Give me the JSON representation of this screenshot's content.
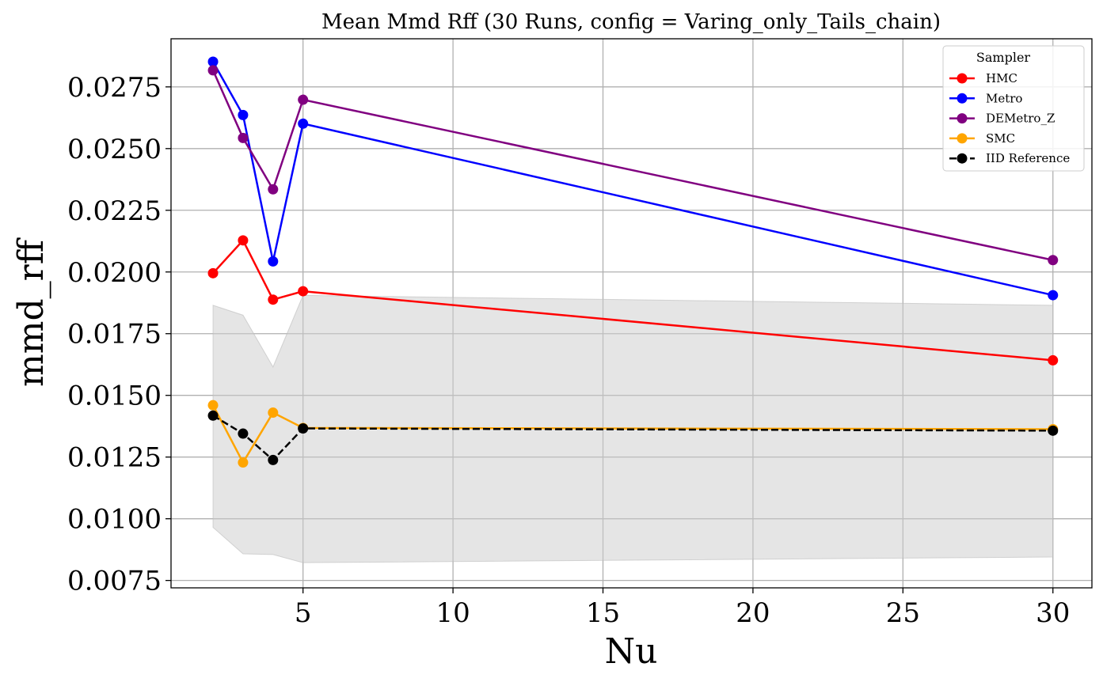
{
  "chart_data": {
    "type": "line",
    "title": "Mean Mmd Rff (30 Runs, config = Varing_only_Tails_chain)",
    "xlabel": "Nu",
    "ylabel": "mmd_rff",
    "x": [
      2,
      3,
      4,
      5,
      30
    ],
    "xlim": [
      0.6,
      31.3
    ],
    "ylim": [
      0.0072,
      0.02945
    ],
    "xticks": [
      5,
      10,
      15,
      20,
      25,
      30
    ],
    "xtick_labels": [
      "5",
      "10",
      "15",
      "20",
      "25",
      "30"
    ],
    "yticks": [
      0.0075,
      0.01,
      0.0125,
      0.015,
      0.0175,
      0.02,
      0.0225,
      0.025,
      0.0275
    ],
    "ytick_labels": [
      "0.0075",
      "0.0100",
      "0.0125",
      "0.0150",
      "0.0175",
      "0.0200",
      "0.0225",
      "0.0250",
      "0.0275"
    ],
    "grid": true,
    "legend": {
      "title": "Sampler",
      "placement": "top-right"
    },
    "band": {
      "color": "#cccccc",
      "upper": [
        0.01865,
        0.01825,
        0.01615,
        0.01905,
        0.01865
      ],
      "lower": [
        0.00965,
        0.00858,
        0.00855,
        0.00822,
        0.00845
      ]
    },
    "series": [
      {
        "name": "HMC",
        "color": "#ff0000",
        "dashed": false,
        "values": [
          0.01995,
          0.02128,
          0.01888,
          0.01922,
          0.01642
        ]
      },
      {
        "name": "Metro",
        "color": "#0000ff",
        "dashed": false,
        "values": [
          0.02852,
          0.02636,
          0.02043,
          0.02601,
          0.01906
        ]
      },
      {
        "name": "DEMetro_Z",
        "color": "#800080",
        "dashed": false,
        "values": [
          0.02817,
          0.02543,
          0.02335,
          0.02698,
          0.02048
        ]
      },
      {
        "name": "SMC",
        "color": "#ffa500",
        "dashed": false,
        "values": [
          0.0146,
          0.01228,
          0.0143,
          0.01368,
          0.01363
        ]
      },
      {
        "name": "IID Reference",
        "color": "#000000",
        "dashed": true,
        "values": [
          0.01418,
          0.01345,
          0.01238,
          0.01366,
          0.01357
        ]
      }
    ]
  }
}
